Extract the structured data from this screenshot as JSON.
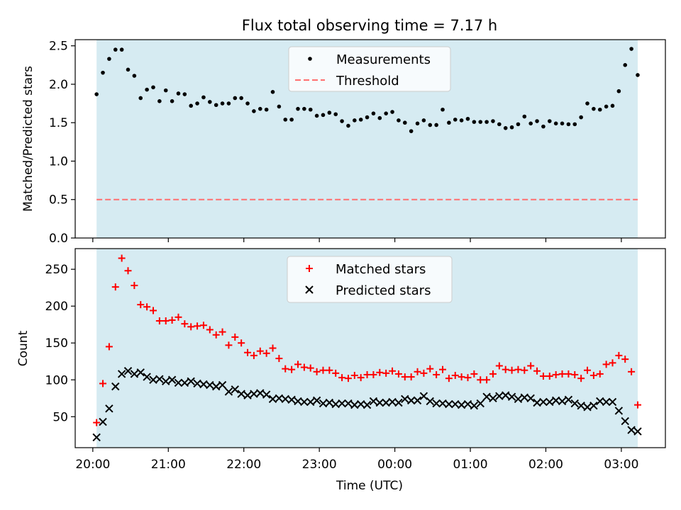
{
  "chart_data": [
    {
      "type": "scatter",
      "title": "Flux total observing time = 7.17 h",
      "xlabel": "",
      "ylabel": "Matched/Predicted stars",
      "ylim": [
        0,
        2.58
      ],
      "yticks": [
        "0.0",
        "0.5",
        "1.0",
        "1.5",
        "2.0",
        "2.5"
      ],
      "grid": false,
      "legend_position": "top-center",
      "shaded_span": [
        "20:03",
        "03:13"
      ],
      "shade_color": "#add8e6",
      "threshold": 0.5,
      "series": [
        {
          "name": "Measurements",
          "marker": "dot",
          "color": "#000000",
          "y": [
            1.87,
            2.15,
            2.33,
            2.45,
            2.45,
            2.19,
            2.11,
            1.82,
            1.93,
            1.96,
            1.78,
            1.92,
            1.78,
            1.88,
            1.87,
            1.72,
            1.75,
            1.83,
            1.77,
            1.73,
            1.75,
            1.75,
            1.82,
            1.82,
            1.75,
            1.65,
            1.68,
            1.67,
            1.9,
            1.71,
            1.54,
            1.54,
            1.68,
            1.68,
            1.67,
            1.59,
            1.6,
            1.63,
            1.61,
            1.52,
            1.46,
            1.53,
            1.54,
            1.57,
            1.62,
            1.56,
            1.62,
            1.64,
            1.53,
            1.5,
            1.39,
            1.49,
            1.53,
            1.47,
            1.47,
            1.67,
            1.5,
            1.54,
            1.53,
            1.55,
            1.51,
            1.51,
            1.51,
            1.52,
            1.48,
            1.43,
            1.44,
            1.48,
            1.58,
            1.49,
            1.52,
            1.45,
            1.52,
            1.49,
            1.49,
            1.48,
            1.48,
            1.57,
            1.75,
            1.68,
            1.67,
            1.71,
            1.72,
            1.91,
            2.25,
            2.46,
            2.12
          ]
        },
        {
          "name": "Threshold",
          "marker": "dashed-line",
          "color": "#ff6f6f"
        }
      ]
    },
    {
      "type": "scatter",
      "title": "",
      "xlabel": "Time (UTC)",
      "ylabel": "Count",
      "ylim": [
        8,
        278
      ],
      "yticks": [
        "50",
        "100",
        "150",
        "200",
        "250"
      ],
      "xticks": [
        "20:00",
        "21:00",
        "22:00",
        "23:00",
        "00:00",
        "01:00",
        "02:00",
        "03:00"
      ],
      "xlim": [
        "19:46",
        "03:35"
      ],
      "grid": false,
      "legend_position": "top-center",
      "shaded_span": [
        "20:03",
        "03:13"
      ],
      "shade_color": "#add8e6",
      "series": [
        {
          "name": "Matched stars",
          "marker": "plus",
          "color": "#ff0000",
          "y": [
            42,
            95,
            145,
            226,
            265,
            248,
            228,
            202,
            199,
            194,
            180,
            180,
            181,
            185,
            176,
            172,
            173,
            174,
            168,
            161,
            165,
            147,
            158,
            150,
            137,
            133,
            139,
            136,
            143,
            129,
            115,
            114,
            121,
            117,
            116,
            111,
            113,
            113,
            109,
            103,
            102,
            106,
            103,
            107,
            107,
            110,
            109,
            112,
            108,
            104,
            104,
            111,
            109,
            115,
            107,
            114,
            102,
            106,
            104,
            103,
            108,
            100,
            100,
            108,
            119,
            114,
            113,
            114,
            113,
            119,
            112,
            105,
            105,
            107,
            108,
            108,
            107,
            102,
            113,
            106,
            108,
            121,
            123,
            133,
            128,
            111,
            66
          ]
        },
        {
          "name": "Predicted stars",
          "marker": "cross",
          "color": "#000000",
          "y": [
            22,
            43,
            61,
            91,
            108,
            112,
            108,
            110,
            104,
            100,
            101,
            98,
            100,
            96,
            96,
            98,
            95,
            94,
            93,
            91,
            93,
            84,
            87,
            81,
            79,
            81,
            82,
            80,
            74,
            75,
            74,
            73,
            71,
            70,
            70,
            72,
            68,
            69,
            67,
            68,
            68,
            66,
            67,
            66,
            71,
            69,
            69,
            70,
            69,
            74,
            72,
            72,
            78,
            71,
            68,
            68,
            67,
            67,
            66,
            67,
            65,
            68,
            77,
            75,
            78,
            79,
            77,
            74,
            76,
            75,
            69,
            70,
            70,
            72,
            71,
            73,
            68,
            65,
            63,
            65,
            71,
            70,
            70,
            58,
            44,
            32,
            30
          ]
        }
      ]
    }
  ]
}
